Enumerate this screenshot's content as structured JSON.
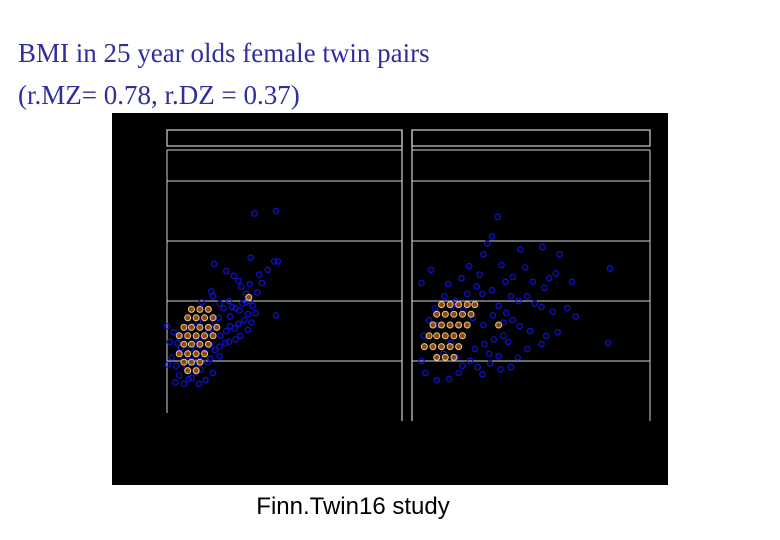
{
  "slide": {
    "title_line1": "BMI in 25 year olds female twin pairs",
    "title_line2": "(r.MZ= 0.78, r.DZ = 0.37)",
    "caption": "Finn.Twin16 study"
  },
  "colors": {
    "background": "#000000",
    "frame": "#d0d0d0",
    "point": "#1010d8",
    "dense_fill": "#8a4a10",
    "dense_edge": "#e8c890",
    "title": "#2e2e9e"
  },
  "chart_data": {
    "type": "scatter",
    "grid": true,
    "panels": [
      {
        "xlim": [
          15,
          40
        ],
        "ylim": [
          15,
          40
        ],
        "points": [
          [
            24.3,
            32.3
          ],
          [
            26.6,
            32.5
          ],
          [
            23.9,
            28.6
          ],
          [
            26.4,
            28.3
          ],
          [
            20.0,
            28.1
          ],
          [
            21.3,
            27.5
          ],
          [
            22.1,
            27.1
          ],
          [
            22.6,
            26.7
          ],
          [
            22.9,
            26.2
          ],
          [
            23.4,
            25.6
          ],
          [
            23.8,
            25.0
          ],
          [
            24.1,
            24.6
          ],
          [
            26.8,
            28.3
          ],
          [
            26.6,
            23.8
          ],
          [
            23.0,
            24.8
          ],
          [
            23.4,
            24.9
          ],
          [
            21.6,
            25.0
          ],
          [
            21.9,
            24.5
          ],
          [
            22.3,
            24.4
          ],
          [
            22.7,
            24.2
          ],
          [
            23.2,
            23.4
          ],
          [
            23.6,
            23.9
          ],
          [
            24.0,
            23.2
          ],
          [
            22.8,
            22.1
          ],
          [
            19.9,
            25.4
          ],
          [
            20.6,
            24.8
          ],
          [
            21.0,
            24.4
          ],
          [
            20.5,
            23.6
          ],
          [
            20.1,
            23.3
          ],
          [
            19.7,
            22.7
          ],
          [
            21.7,
            22.9
          ],
          [
            22.2,
            22.7
          ],
          [
            22.6,
            23.1
          ],
          [
            21.3,
            22.5
          ],
          [
            20.7,
            22.1
          ],
          [
            19.4,
            22.4
          ],
          [
            18.9,
            22.0
          ],
          [
            18.5,
            21.3
          ],
          [
            18.1,
            21.9
          ],
          [
            17.9,
            21.3
          ],
          [
            17.5,
            21.0
          ],
          [
            17.7,
            20.4
          ],
          [
            17.2,
            20.0
          ],
          [
            16.5,
            21.1
          ],
          [
            16.1,
            21.5
          ],
          [
            16.3,
            20.7
          ],
          [
            16.8,
            20.3
          ],
          [
            17.1,
            19.6
          ],
          [
            18.1,
            19.9
          ],
          [
            18.5,
            20.4
          ],
          [
            19.0,
            20.7
          ],
          [
            19.6,
            21.3
          ],
          [
            20.1,
            20.9
          ],
          [
            20.6,
            21.2
          ],
          [
            21.2,
            21.5
          ],
          [
            21.6,
            21.6
          ],
          [
            20.6,
            20.4
          ],
          [
            19.6,
            20.2
          ],
          [
            19.3,
            19.9
          ],
          [
            18.6,
            19.3
          ],
          [
            18.1,
            19.1
          ],
          [
            17.6,
            18.6
          ],
          [
            16.3,
            18.8
          ],
          [
            16.0,
            19.6
          ],
          [
            15.9,
            18.2
          ],
          [
            16.8,
            18.1
          ],
          [
            17.3,
            18.5
          ],
          [
            18.4,
            18.1
          ],
          [
            19.1,
            18.4
          ],
          [
            19.9,
            19.0
          ],
          [
            15.5,
            20.3
          ],
          [
            15.1,
            19.7
          ],
          [
            21.7,
            23.7
          ],
          [
            22.3,
            21.8
          ],
          [
            23.8,
            26.4
          ],
          [
            24.6,
            25.7
          ],
          [
            24.8,
            27.2
          ],
          [
            25.7,
            27.6
          ],
          [
            25.1,
            26.5
          ],
          [
            24.4,
            24.0
          ],
          [
            23.6,
            22.6
          ],
          [
            19.7,
            25.8
          ],
          [
            18.7,
            24.9
          ],
          [
            18.3,
            23.3
          ],
          [
            17.7,
            22.9
          ],
          [
            17.2,
            22.8
          ],
          [
            16.9,
            22.1
          ],
          [
            15.7,
            22.4
          ],
          [
            15.3,
            21.6
          ],
          [
            15.0,
            22.9
          ]
        ],
        "dense": [
          [
            17.6,
            24.3
          ],
          [
            18.5,
            24.3
          ],
          [
            19.4,
            24.3
          ],
          [
            17.2,
            23.6
          ],
          [
            18.1,
            23.6
          ],
          [
            19.0,
            23.6
          ],
          [
            19.9,
            23.6
          ],
          [
            16.8,
            22.8
          ],
          [
            17.6,
            22.8
          ],
          [
            18.5,
            22.8
          ],
          [
            19.4,
            22.8
          ],
          [
            20.3,
            22.8
          ],
          [
            16.3,
            22.1
          ],
          [
            17.2,
            22.1
          ],
          [
            18.1,
            22.1
          ],
          [
            19.0,
            22.1
          ],
          [
            19.9,
            22.1
          ],
          [
            16.8,
            21.4
          ],
          [
            17.6,
            21.4
          ],
          [
            18.5,
            21.4
          ],
          [
            19.4,
            21.4
          ],
          [
            16.3,
            20.6
          ],
          [
            17.2,
            20.6
          ],
          [
            18.1,
            20.6
          ],
          [
            19.0,
            20.6
          ],
          [
            16.8,
            19.9
          ],
          [
            17.6,
            19.9
          ],
          [
            18.5,
            19.9
          ],
          [
            17.2,
            19.2
          ],
          [
            18.1,
            19.2
          ],
          [
            23.7,
            25.3
          ]
        ]
      },
      {
        "xlim": [
          15,
          40
        ],
        "ylim": [
          15,
          40
        ],
        "points": [
          [
            24.0,
            32.0
          ],
          [
            23.4,
            30.4
          ],
          [
            22.9,
            29.8
          ],
          [
            22.5,
            28.9
          ],
          [
            26.4,
            29.3
          ],
          [
            28.7,
            29.5
          ],
          [
            30.5,
            28.9
          ],
          [
            31.8,
            26.6
          ],
          [
            30.1,
            27.3
          ],
          [
            29.4,
            26.9
          ],
          [
            28.9,
            26.1
          ],
          [
            27.7,
            26.6
          ],
          [
            26.9,
            27.8
          ],
          [
            25.6,
            27.0
          ],
          [
            24.8,
            26.6
          ],
          [
            25.4,
            25.4
          ],
          [
            26.2,
            25.0
          ],
          [
            27.1,
            25.4
          ],
          [
            27.9,
            24.8
          ],
          [
            28.6,
            24.5
          ],
          [
            29.8,
            24.1
          ],
          [
            31.3,
            24.4
          ],
          [
            32.2,
            23.7
          ],
          [
            30.3,
            22.4
          ],
          [
            29.1,
            22.1
          ],
          [
            27.4,
            22.5
          ],
          [
            26.3,
            22.9
          ],
          [
            25.6,
            23.4
          ],
          [
            24.6,
            23.2
          ],
          [
            23.5,
            23.8
          ],
          [
            22.5,
            23.0
          ],
          [
            21.4,
            23.6
          ],
          [
            20.4,
            24.2
          ],
          [
            19.6,
            25.0
          ],
          [
            19.2,
            24.6
          ],
          [
            20.8,
            25.6
          ],
          [
            21.8,
            26.2
          ],
          [
            22.4,
            25.6
          ],
          [
            23.4,
            25.9
          ],
          [
            24.1,
            24.6
          ],
          [
            24.9,
            24.0
          ],
          [
            22.1,
            27.2
          ],
          [
            21.0,
            27.9
          ],
          [
            24.4,
            28.0
          ],
          [
            28.6,
            21.4
          ],
          [
            27.1,
            21.0
          ],
          [
            26.1,
            20.3
          ],
          [
            25.1,
            21.6
          ],
          [
            24.6,
            22.1
          ],
          [
            23.6,
            21.8
          ],
          [
            23.1,
            20.6
          ],
          [
            22.6,
            21.4
          ],
          [
            21.6,
            21.0
          ],
          [
            21.1,
            20.0
          ],
          [
            20.3,
            19.6
          ],
          [
            19.6,
            20.3
          ],
          [
            19.9,
            19.0
          ],
          [
            18.9,
            18.5
          ],
          [
            17.6,
            18.4
          ],
          [
            16.4,
            19.0
          ],
          [
            16.0,
            20.0
          ],
          [
            16.2,
            22.1
          ],
          [
            16.8,
            23.4
          ],
          [
            17.4,
            24.4
          ],
          [
            18.4,
            25.4
          ],
          [
            18.8,
            26.4
          ],
          [
            20.2,
            26.9
          ],
          [
            24.1,
            20.4
          ],
          [
            22.4,
            18.9
          ],
          [
            21.9,
            19.5
          ],
          [
            23.2,
            19.8
          ],
          [
            24.3,
            19.3
          ],
          [
            25.4,
            19.5
          ],
          [
            19.1,
            21.5
          ],
          [
            18.3,
            20.6
          ],
          [
            35.8,
            27.7
          ],
          [
            35.6,
            21.5
          ],
          [
            16.0,
            26.5
          ],
          [
            17.0,
            27.6
          ],
          [
            17.8,
            23.0
          ]
        ],
        "dense": [
          [
            18.1,
            24.7
          ],
          [
            19.0,
            24.7
          ],
          [
            19.9,
            24.7
          ],
          [
            20.8,
            24.7
          ],
          [
            21.6,
            24.7
          ],
          [
            17.6,
            23.9
          ],
          [
            18.5,
            23.9
          ],
          [
            19.4,
            23.9
          ],
          [
            20.3,
            23.9
          ],
          [
            21.2,
            23.9
          ],
          [
            17.2,
            23.0
          ],
          [
            18.1,
            23.0
          ],
          [
            19.0,
            23.0
          ],
          [
            19.9,
            23.0
          ],
          [
            20.8,
            23.0
          ],
          [
            16.8,
            22.1
          ],
          [
            17.6,
            22.1
          ],
          [
            18.5,
            22.1
          ],
          [
            19.4,
            22.1
          ],
          [
            20.3,
            22.1
          ],
          [
            16.3,
            21.2
          ],
          [
            17.2,
            21.2
          ],
          [
            18.1,
            21.2
          ],
          [
            19.0,
            21.2
          ],
          [
            19.9,
            21.2
          ],
          [
            17.6,
            20.3
          ],
          [
            18.5,
            20.3
          ],
          [
            19.4,
            20.3
          ],
          [
            24.1,
            23.0
          ]
        ]
      }
    ],
    "ygrid": [
      20,
      25,
      30,
      35
    ]
  }
}
